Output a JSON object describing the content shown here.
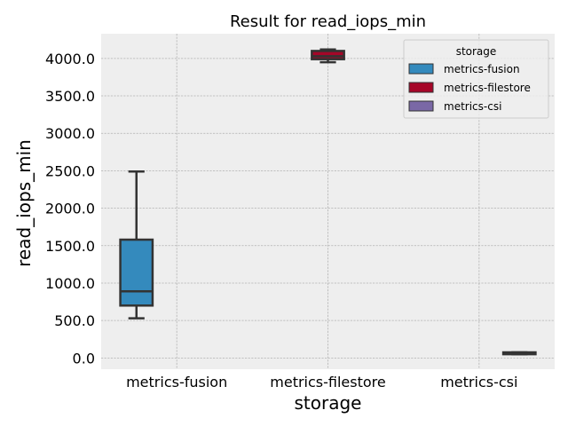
{
  "chart_data": {
    "type": "box",
    "title": "Result for read_iops_min",
    "xlabel": "storage",
    "ylabel": "read_iops_min",
    "categories": [
      "metrics-fusion",
      "metrics-filestore",
      "metrics-csi"
    ],
    "ylim": [
      -150,
      4330
    ],
    "yticks": [
      0.0,
      500.0,
      1000.0,
      1500.0,
      2000.0,
      2500.0,
      3000.0,
      3500.0,
      4000.0
    ],
    "ytick_labels": [
      "0.0",
      "500.0",
      "1000.0",
      "1500.0",
      "2000.0",
      "2500.0",
      "3000.0",
      "3500.0",
      "4000.0"
    ],
    "grid": true,
    "legend_placement": "top-right",
    "legend_title": "storage",
    "series": [
      {
        "name": "metrics-fusion",
        "color": "#348abd",
        "box": {
          "whislo": 530,
          "q1": 700,
          "med": 890,
          "q3": 1580,
          "whishi": 2490
        }
      },
      {
        "name": "metrics-filestore",
        "color": "#a60628",
        "box": {
          "whislo": 3950,
          "q1": 3990,
          "med": 4030,
          "q3": 4100,
          "whishi": 4120
        }
      },
      {
        "name": "metrics-csi",
        "color": "#7a68a6",
        "box": {
          "whislo": 50,
          "q1": 50,
          "med": 60,
          "q3": 75,
          "whishi": 75
        }
      }
    ]
  }
}
